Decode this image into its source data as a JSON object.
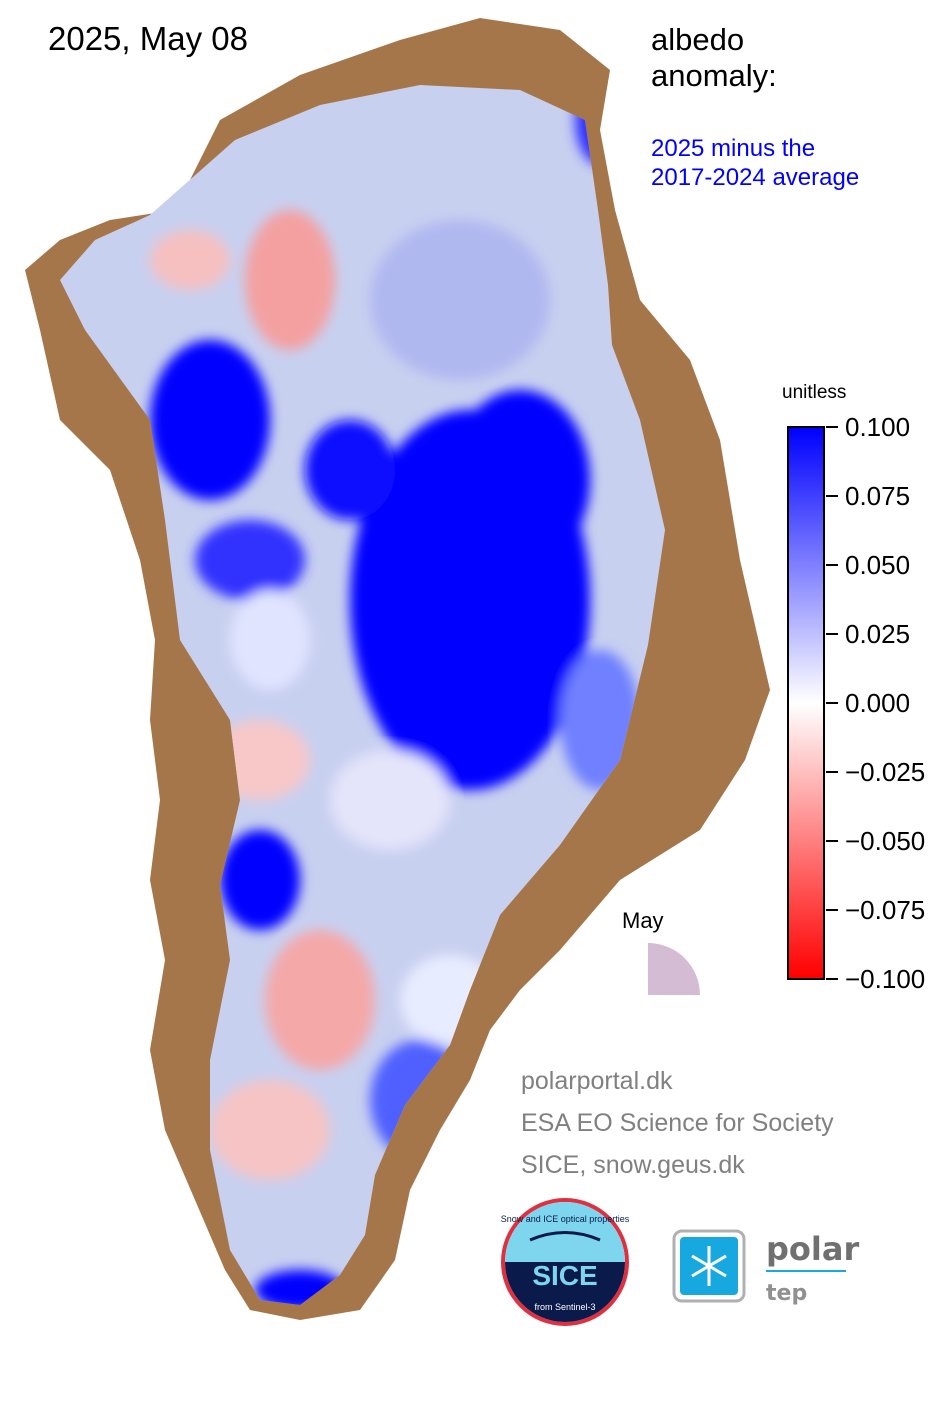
{
  "date": "2025, May 08",
  "title": {
    "line1": "albedo",
    "line2": "anomaly:"
  },
  "subtitle": {
    "line1": "2025 minus the",
    "line2": "2017-2024 average"
  },
  "colorbar": {
    "unit": "unitless",
    "min": -0.1,
    "max": 0.1,
    "ticks": [
      "0.100",
      "0.075",
      "0.050",
      "0.025",
      "0.000",
      "−0.025",
      "−0.050",
      "−0.075",
      "−0.100"
    ],
    "colors": {
      "high": "#0000ff",
      "mid": "#ffffff",
      "low": "#ff0000"
    }
  },
  "season_indicator": {
    "label": "May",
    "color": "#d4bcd4"
  },
  "colors": {
    "land": "#a5764a",
    "ice_base": "#c8d0f0"
  },
  "credits": [
    "polarportal.dk",
    "ESA EO Science for Society",
    "SICE, snow.geus.dk"
  ],
  "logos": {
    "sice": {
      "top_text": "Snow and ICE optical properties",
      "main_text": "SICE",
      "bottom_text": "from Sentinel-3"
    },
    "polar_tep": {
      "word1": "polar",
      "word2": "tep"
    }
  }
}
